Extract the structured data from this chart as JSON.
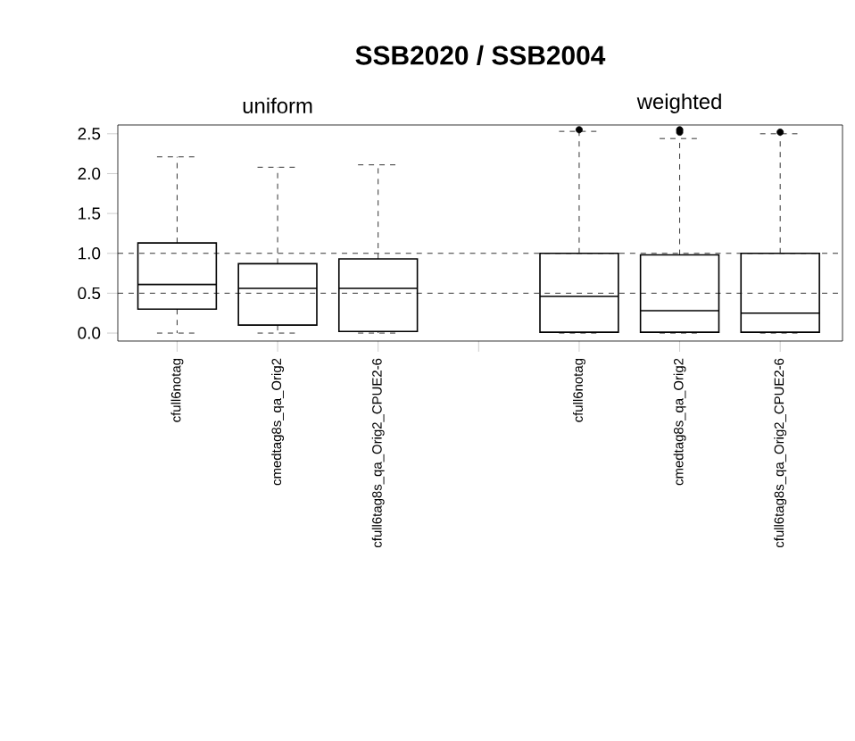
{
  "chart_data": {
    "type": "box",
    "title": "SSB2020 / SSB2004",
    "annotations": [
      "uniform",
      "weighted"
    ],
    "categories": [
      "cfull6notag",
      "cmedtag8s_qa_Orig2",
      "cfull6tag8s_qa_Orig2_CPUE2-6",
      null,
      "cfull6notag",
      "cmedtag8s_qa_Orig2",
      "cfull6tag8s_qa_Orig2_CPUE2-6"
    ],
    "boxes": [
      {
        "low": 0.0,
        "q1": 0.3,
        "median": 0.61,
        "q3": 1.13,
        "high": 2.21
      },
      {
        "low": 0.0,
        "q1": 0.1,
        "median": 0.56,
        "q3": 0.87,
        "high": 2.08
      },
      {
        "low": 0.0,
        "q1": 0.02,
        "median": 0.56,
        "q3": 0.93,
        "high": 2.11
      },
      null,
      {
        "low": 0.0,
        "q1": 0.01,
        "median": 0.46,
        "q3": 1.0,
        "high": 2.53,
        "outliers": [
          2.55
        ]
      },
      {
        "low": 0.0,
        "q1": 0.01,
        "median": 0.28,
        "q3": 0.98,
        "high": 2.44,
        "outliers": [
          2.52,
          2.55
        ]
      },
      {
        "low": 0.0,
        "q1": 0.01,
        "median": 0.25,
        "q3": 1.0,
        "high": 2.5,
        "outliers": [
          2.52
        ]
      }
    ],
    "color": "#000000",
    "ylim": [
      -0.1,
      2.61
    ],
    "yticks": [
      {
        "value": 0.0,
        "label": "0.0"
      },
      {
        "value": 0.5,
        "label": "0.5"
      },
      {
        "value": 1.0,
        "label": "1.0"
      },
      {
        "value": 1.5,
        "label": "1.5"
      },
      {
        "value": 2.0,
        "label": "2.0"
      },
      {
        "value": 2.5,
        "label": "2.5"
      }
    ],
    "ref_lines": [
      {
        "axis": "y",
        "value": 1.0,
        "line_style": "dashed"
      },
      {
        "axis": "y",
        "value": 0.5,
        "line_style": "dashed"
      }
    ],
    "grid": false
  }
}
